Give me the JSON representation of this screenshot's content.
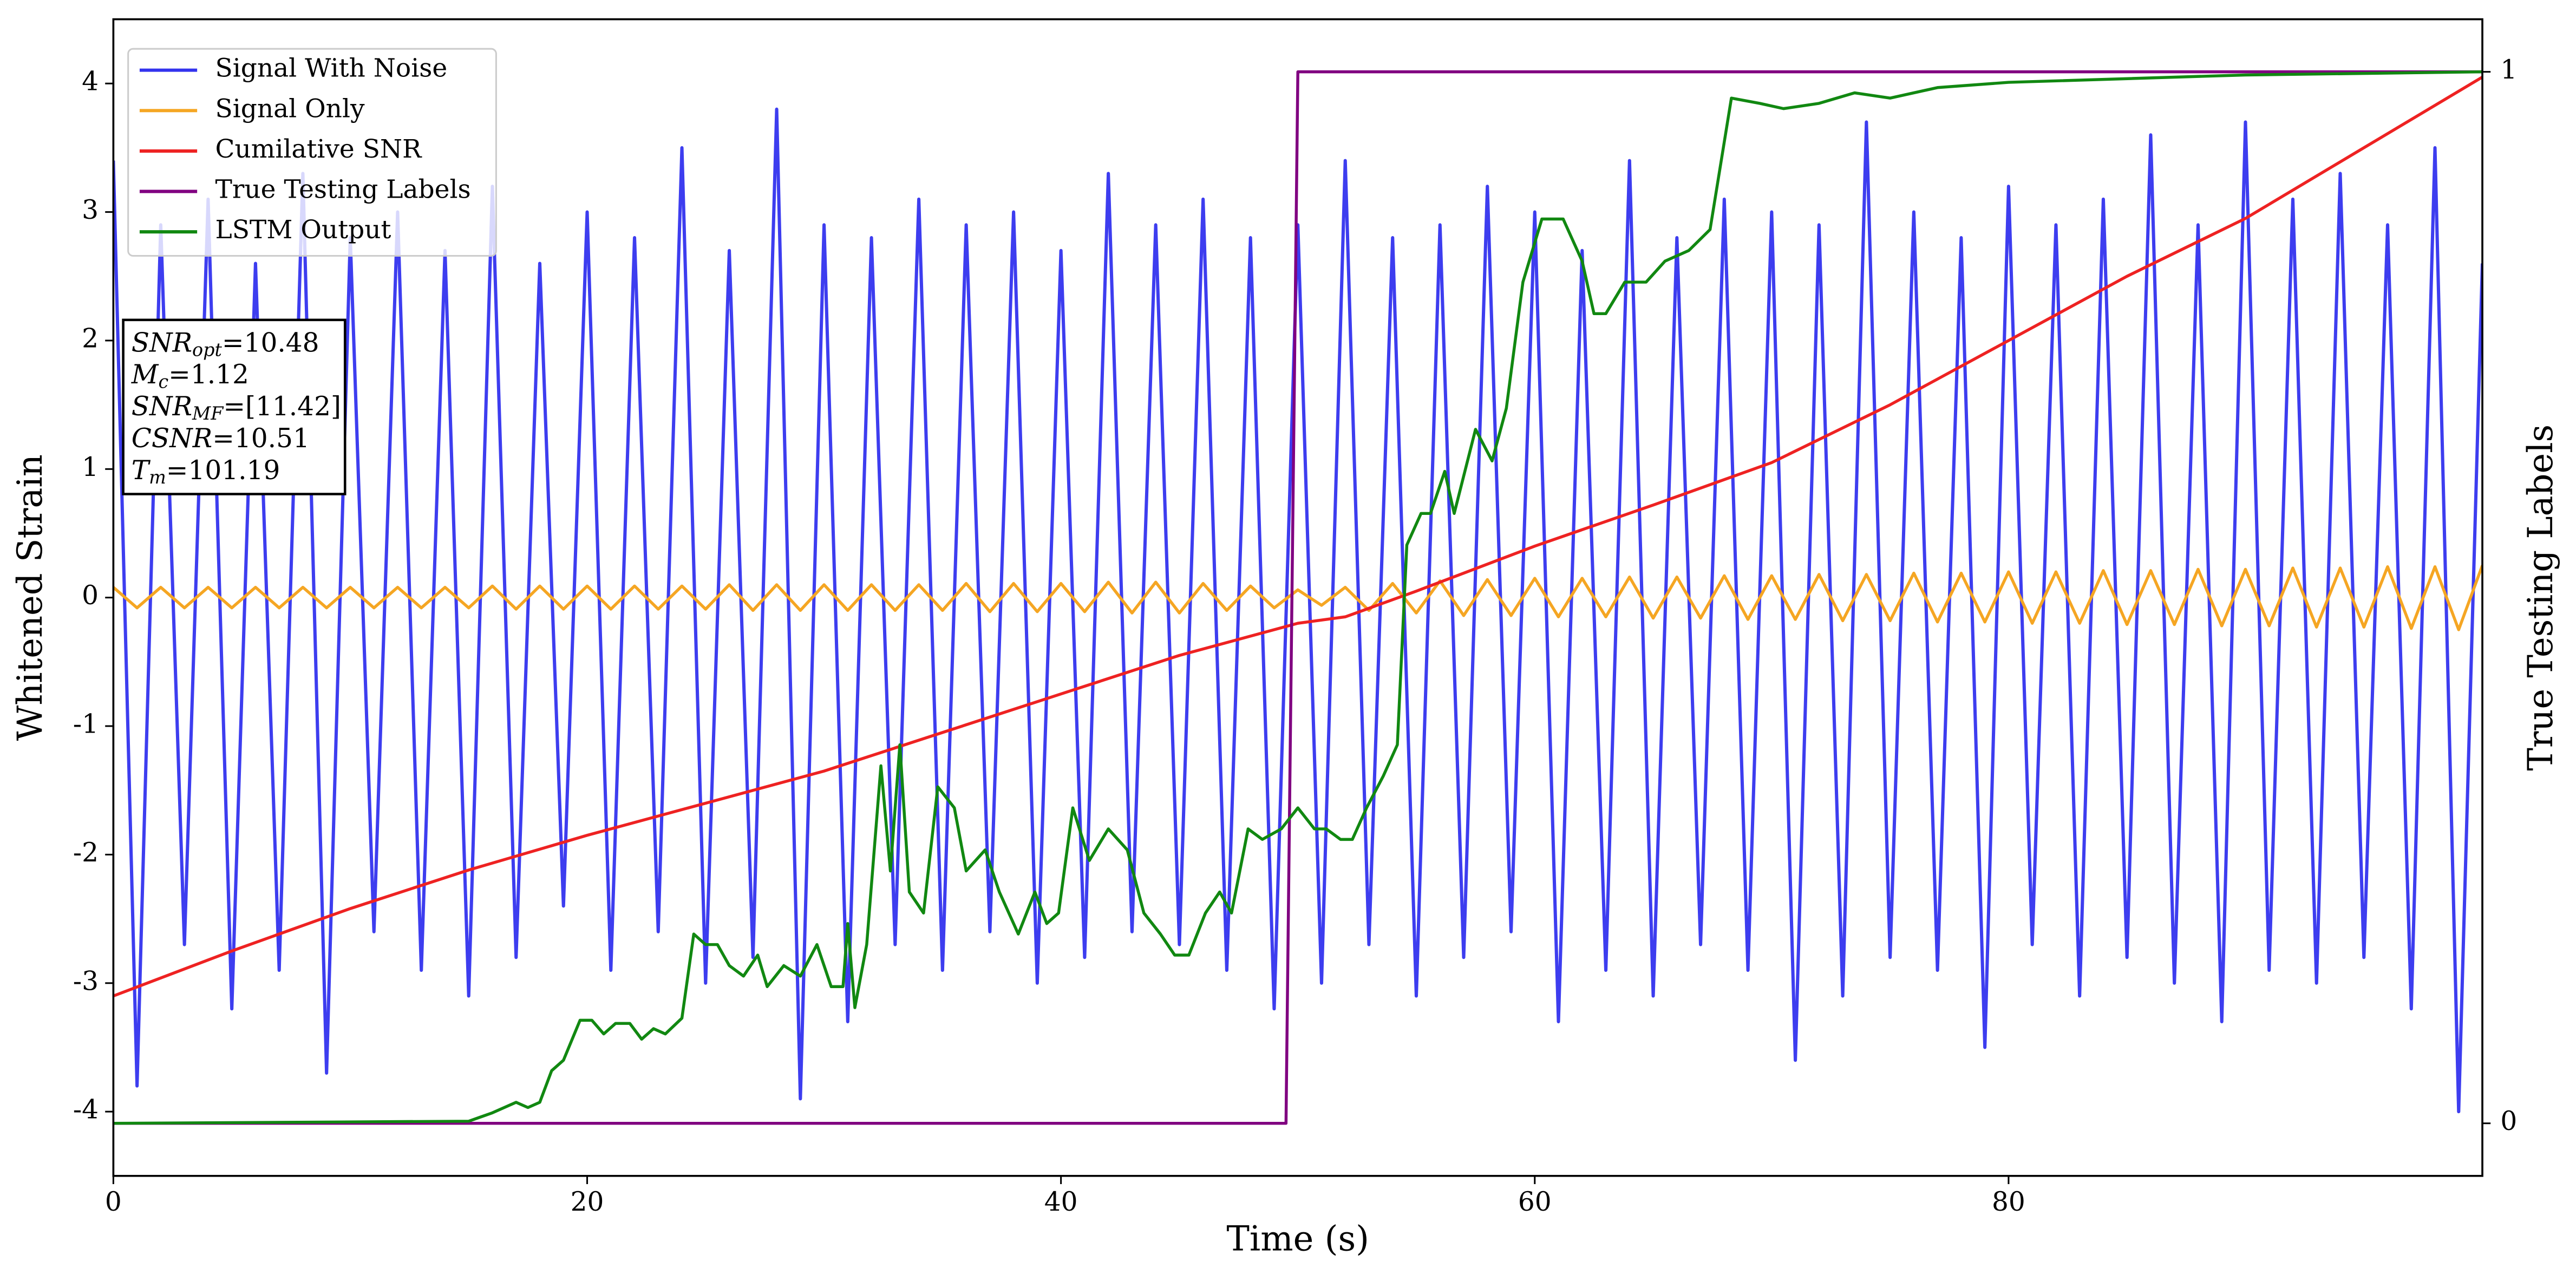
{
  "chart_data": {
    "type": "line",
    "xlabel": "Time (s)",
    "ylabel": "Whitened Strain",
    "y2label": "True Testing Labels",
    "xlim": [
      0,
      100
    ],
    "ylim": [
      -4.5,
      4.5
    ],
    "y2lim": [
      -0.05,
      1.05
    ],
    "xticks": [
      0,
      20,
      40,
      60,
      80
    ],
    "yticks": [
      -4,
      -3,
      -2,
      -1,
      0,
      1,
      2,
      3,
      4
    ],
    "y2ticks": [
      0,
      1
    ],
    "grid": false,
    "legend": "upper left",
    "x": [
      0,
      1,
      2,
      3,
      4,
      5,
      6,
      7,
      8,
      9,
      10,
      11,
      12,
      13,
      14,
      15,
      16,
      17,
      18,
      19,
      20,
      21,
      22,
      23,
      24,
      25,
      26,
      27,
      28,
      29,
      30,
      31,
      32,
      33,
      34,
      35,
      36,
      37,
      38,
      39,
      40,
      41,
      42,
      43,
      44,
      45,
      46,
      47,
      48,
      49,
      50,
      51,
      52,
      53,
      54,
      55,
      56,
      57,
      58,
      59,
      60,
      61,
      62,
      63,
      64,
      65,
      66,
      67,
      68,
      69,
      70,
      71,
      72,
      73,
      74,
      75,
      76,
      77,
      78,
      79,
      80,
      81,
      82,
      83,
      84,
      85,
      86,
      87,
      88,
      89,
      90,
      91,
      92,
      93,
      94,
      95,
      96,
      97,
      98,
      99,
      100
    ],
    "series": [
      {
        "name": "Signal With Noise",
        "color": "#3333ee",
        "values": [
          3.4,
          -3.8,
          2.9,
          -2.7,
          3.1,
          -3.2,
          2.6,
          -2.9,
          3.3,
          -3.7,
          2.8,
          -2.6,
          3.0,
          -2.9,
          2.7,
          -3.1,
          3.2,
          -2.8,
          2.6,
          -2.4,
          3.0,
          -2.9,
          2.8,
          -2.6,
          3.5,
          -3.0,
          2.7,
          -2.8,
          3.8,
          -3.9,
          2.9,
          -3.3,
          2.8,
          -2.7,
          3.1,
          -2.9,
          2.9,
          -2.6,
          3.0,
          -3.0,
          2.7,
          -2.8,
          3.3,
          -2.6,
          2.9,
          -2.7,
          3.1,
          -2.9,
          2.8,
          -3.2,
          2.9,
          -3.0,
          3.4,
          -2.7,
          2.8,
          -3.1,
          2.9,
          -2.8,
          3.2,
          -2.6,
          3.0,
          -3.3,
          2.7,
          -2.9,
          3.4,
          -3.1,
          2.8,
          -2.7,
          3.1,
          -2.9,
          3.0,
          -3.6,
          2.9,
          -3.1,
          3.7,
          -2.8,
          3.0,
          -2.9,
          2.8,
          -3.5,
          3.2,
          -2.7,
          2.9,
          -3.1,
          3.1,
          -2.8,
          3.6,
          -3.0,
          2.9,
          -3.3,
          3.7,
          -2.9,
          3.1,
          -3.0,
          3.3,
          -2.8,
          2.9,
          -3.2,
          3.5,
          -4.0,
          2.6
        ]
      },
      {
        "name": "Signal Only",
        "color": "#f5a623",
        "values": [
          0.08,
          -0.08,
          0.08,
          -0.08,
          0.08,
          -0.08,
          0.08,
          -0.08,
          0.08,
          -0.08,
          0.08,
          -0.08,
          0.08,
          -0.08,
          0.08,
          -0.08,
          0.09,
          -0.09,
          0.09,
          -0.09,
          0.09,
          -0.09,
          0.09,
          -0.09,
          0.09,
          -0.09,
          0.1,
          -0.1,
          0.1,
          -0.1,
          0.1,
          -0.1,
          0.1,
          -0.1,
          0.1,
          -0.1,
          0.11,
          -0.11,
          0.11,
          -0.11,
          0.11,
          -0.11,
          0.12,
          -0.12,
          0.12,
          -0.12,
          0.11,
          -0.1,
          0.09,
          -0.08,
          0.06,
          -0.06,
          0.08,
          -0.1,
          0.11,
          -0.12,
          0.13,
          -0.14,
          0.14,
          -0.14,
          0.15,
          -0.15,
          0.15,
          -0.15,
          0.16,
          -0.16,
          0.16,
          -0.16,
          0.17,
          -0.17,
          0.17,
          -0.17,
          0.18,
          -0.18,
          0.18,
          -0.18,
          0.19,
          -0.19,
          0.19,
          -0.19,
          0.2,
          -0.2,
          0.2,
          -0.2,
          0.21,
          -0.21,
          0.21,
          -0.21,
          0.22,
          -0.22,
          0.22,
          -0.22,
          0.23,
          -0.23,
          0.23,
          -0.23,
          0.24,
          -0.24,
          0.24,
          -0.25,
          0.25
        ]
      },
      {
        "name": "Cumilative SNR",
        "color": "#ee2222",
        "x": [
          0,
          5,
          10,
          15,
          20,
          25,
          30,
          35,
          40,
          45,
          50,
          52,
          55,
          60,
          65,
          70,
          75,
          80,
          85,
          90,
          95,
          100
        ],
        "values": [
          -3.1,
          -2.75,
          -2.42,
          -2.12,
          -1.85,
          -1.6,
          -1.35,
          -1.05,
          -0.75,
          -0.45,
          -0.2,
          -0.15,
          0.05,
          0.4,
          0.72,
          1.05,
          1.5,
          2.0,
          2.5,
          2.95,
          3.5,
          4.05
        ]
      },
      {
        "name": "True Testing Labels",
        "color": "#800080",
        "axis": "y2",
        "x": [
          0,
          49.5,
          50,
          100
        ],
        "values": [
          0,
          0,
          1,
          1
        ]
      },
      {
        "name": "LSTM Output",
        "color": "#118811",
        "axis": "y2",
        "x": [
          0,
          15,
          16,
          17,
          17.5,
          18,
          18.5,
          19,
          19.7,
          20.2,
          20.7,
          21.2,
          21.8,
          22.3,
          22.8,
          23.3,
          24,
          24.5,
          25,
          25.5,
          26,
          26.6,
          27.2,
          27.6,
          28.3,
          29,
          29.7,
          30.3,
          30.8,
          31,
          31.3,
          31.8,
          32.4,
          32.8,
          33.2,
          33.6,
          34.2,
          34.8,
          35.5,
          36,
          36.8,
          37.4,
          38.2,
          38.9,
          39.4,
          39.9,
          40.5,
          41.2,
          42,
          42.8,
          43.5,
          44.2,
          44.8,
          45.4,
          46.1,
          46.7,
          47.2,
          47.9,
          48.5,
          49.3,
          50,
          50.7,
          51.2,
          51.8,
          52.3,
          52.9,
          53.6,
          54.2,
          54.6,
          55.2,
          55.6,
          56.2,
          56.6,
          57.5,
          58.2,
          58.8,
          59.5,
          60.3,
          61.2,
          62,
          62.5,
          63,
          63.8,
          64.7,
          65.5,
          66.5,
          67.4,
          68.3,
          69.5,
          70.5,
          72,
          73.5,
          75,
          77,
          80,
          90,
          100
        ],
        "values": [
          0,
          0.002,
          0.01,
          0.02,
          0.015,
          0.02,
          0.05,
          0.06,
          0.098,
          0.098,
          0.085,
          0.095,
          0.095,
          0.08,
          0.09,
          0.085,
          0.1,
          0.18,
          0.17,
          0.17,
          0.15,
          0.14,
          0.16,
          0.13,
          0.15,
          0.14,
          0.17,
          0.13,
          0.13,
          0.19,
          0.11,
          0.17,
          0.34,
          0.24,
          0.36,
          0.22,
          0.2,
          0.32,
          0.3,
          0.24,
          0.26,
          0.22,
          0.18,
          0.22,
          0.19,
          0.2,
          0.3,
          0.25,
          0.28,
          0.26,
          0.2,
          0.18,
          0.16,
          0.16,
          0.2,
          0.22,
          0.2,
          0.28,
          0.27,
          0.28,
          0.3,
          0.28,
          0.28,
          0.27,
          0.27,
          0.3,
          0.33,
          0.36,
          0.55,
          0.58,
          0.58,
          0.62,
          0.58,
          0.66,
          0.63,
          0.68,
          0.8,
          0.86,
          0.86,
          0.82,
          0.77,
          0.77,
          0.8,
          0.8,
          0.82,
          0.83,
          0.85,
          0.975,
          0.97,
          0.965,
          0.97,
          0.98,
          0.975,
          0.985,
          0.99,
          0.997,
          1.0
        ]
      }
    ],
    "annotation": [
      {
        "text": "SNR",
        "sub": "opt",
        "value": "=10.48"
      },
      {
        "text": "M",
        "sub": "c",
        "value": "=1.12"
      },
      {
        "text": "SNR",
        "sub": "MF",
        "value": "=[11.42]"
      },
      {
        "text": "CSNR",
        "value": "=10.51"
      },
      {
        "text": "T",
        "sub": "m",
        "value": "=101.19"
      }
    ]
  }
}
